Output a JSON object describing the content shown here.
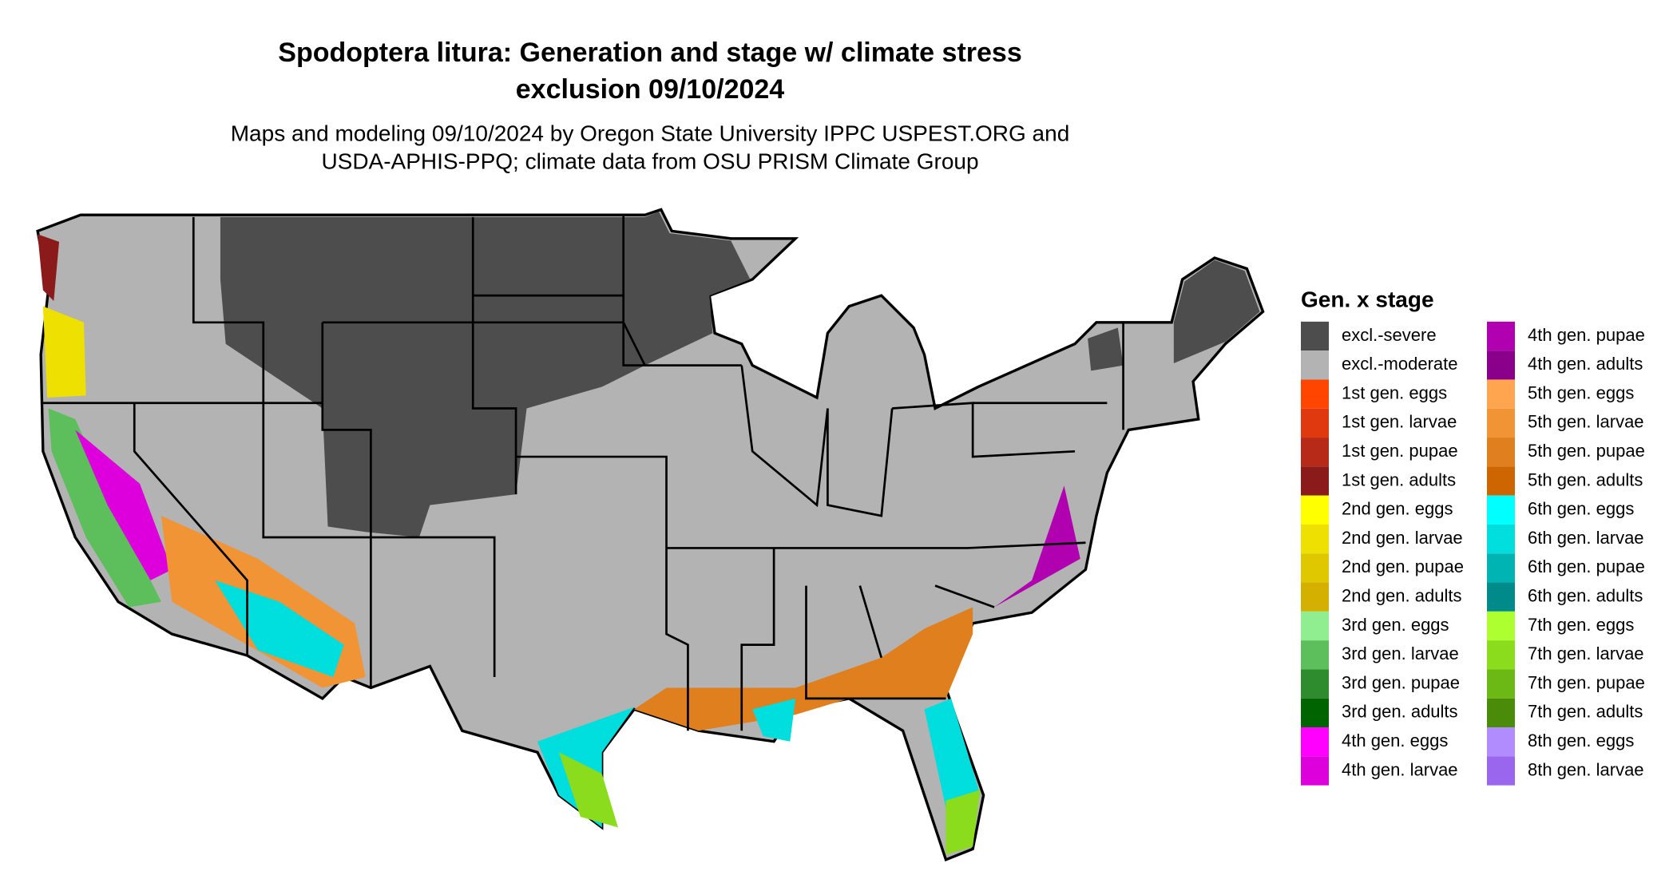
{
  "map": {
    "title_lines": [
      "Spodoptera litura: Generation and stage w/ climate stress",
      "exclusion 09/10/2024"
    ],
    "subtitle_lines": [
      "Maps and modeling 09/10/2024 by Oregon State University IPPC USPEST.ORG and",
      "USDA-APHIS-PPQ; climate data from OSU PRISM Climate Group"
    ],
    "legend": {
      "title": "Gen. x stage",
      "items": [
        {
          "label": "excl.-severe",
          "color": "#4d4d4d"
        },
        {
          "label": "excl.-moderate",
          "color": "#b3b3b3"
        },
        {
          "label": "1st gen. eggs",
          "color": "#ff4500"
        },
        {
          "label": "1st gen. larvae",
          "color": "#e0380f"
        },
        {
          "label": "1st gen. pupae",
          "color": "#b82a18"
        },
        {
          "label": "1st gen. adults",
          "color": "#8b1a1a"
        },
        {
          "label": "2nd gen. eggs",
          "color": "#ffff00"
        },
        {
          "label": "2nd gen. larvae",
          "color": "#eee000"
        },
        {
          "label": "2nd gen. pupae",
          "color": "#e0c800"
        },
        {
          "label": "2nd gen. adults",
          "color": "#d4b000"
        },
        {
          "label": "3rd gen. eggs",
          "color": "#90ee90"
        },
        {
          "label": "3rd gen. larvae",
          "color": "#5cbf5c"
        },
        {
          "label": "3rd gen. pupae",
          "color": "#2e8b2e"
        },
        {
          "label": "3rd gen. adults",
          "color": "#006400"
        },
        {
          "label": "4th gen. eggs",
          "color": "#ff00ff"
        },
        {
          "label": "4th gen. larvae",
          "color": "#dd00dd"
        },
        {
          "label": "4th gen. pupae",
          "color": "#b000b0"
        },
        {
          "label": "4th gen. adults",
          "color": "#8b008b"
        },
        {
          "label": "5th gen. eggs",
          "color": "#ffa54f"
        },
        {
          "label": "5th gen. larvae",
          "color": "#f09436"
        },
        {
          "label": "5th gen. pupae",
          "color": "#e07f1e"
        },
        {
          "label": "5th gen. adults",
          "color": "#cd6600"
        },
        {
          "label": "6th gen. eggs",
          "color": "#00ffff"
        },
        {
          "label": "6th gen. larvae",
          "color": "#00dddd"
        },
        {
          "label": "6th gen. pupae",
          "color": "#00b4b4"
        },
        {
          "label": "6th gen. adults",
          "color": "#008b8b"
        },
        {
          "label": "7th gen. eggs",
          "color": "#adff2f"
        },
        {
          "label": "7th gen. larvae",
          "color": "#8cdc1e"
        },
        {
          "label": "7th gen. pupae",
          "color": "#6cb814"
        },
        {
          "label": "7th gen. adults",
          "color": "#4a8c0a"
        },
        {
          "label": "8th gen. eggs",
          "color": "#b08cff"
        },
        {
          "label": "8th gen. larvae",
          "color": "#9a66ee"
        }
      ]
    }
  }
}
